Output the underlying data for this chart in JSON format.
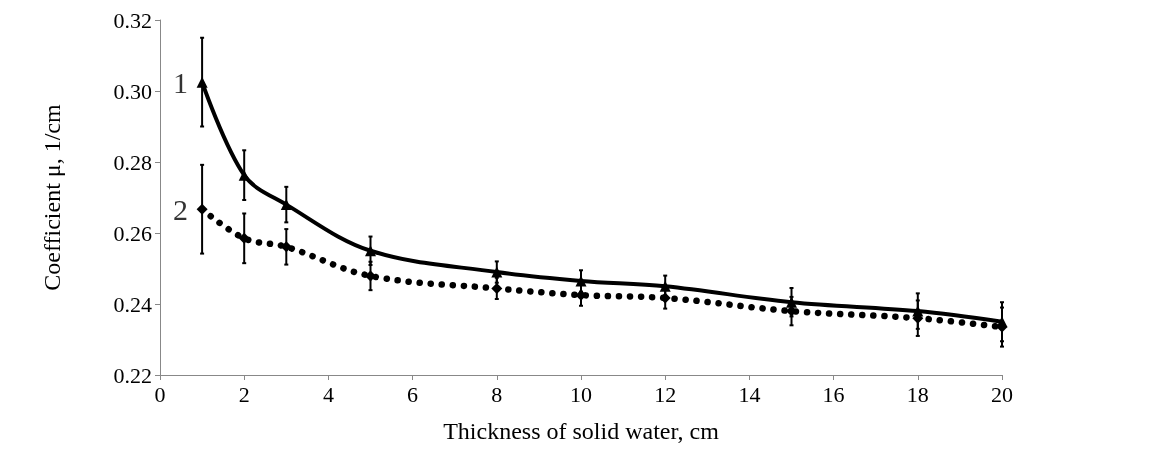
{
  "chart_data": {
    "type": "line",
    "xlabel": "Thickness of solid water, cm",
    "ylabel": "Coefficient μ, 1/cm",
    "x": [
      1,
      2,
      3,
      5,
      8,
      10,
      12,
      15,
      18,
      20
    ],
    "series": [
      {
        "color": "#000000",
        "marker": "triangle",
        "line_style": "solid",
        "values": [
          0.3025,
          0.2763,
          0.268,
          0.255,
          0.249,
          0.2465,
          0.245,
          0.2405,
          0.238,
          0.235
        ],
        "errors": [
          0.0125,
          0.007,
          0.005,
          0.004,
          0.003,
          0.003,
          0.003,
          0.004,
          0.005,
          0.0055
        ]
      },
      {
        "color": "#000000",
        "marker": "diamond",
        "line_style": "dotted",
        "values": [
          0.2667,
          0.2585,
          0.2561,
          0.2479,
          0.2444,
          0.2425,
          0.2417,
          0.238,
          0.236,
          0.2335
        ],
        "errors": [
          0.0125,
          0.007,
          0.005,
          0.004,
          0.003,
          0.003,
          0.003,
          0.004,
          0.005,
          0.0055
        ]
      }
    ],
    "annotations": [
      {
        "text": "1",
        "x": 1,
        "y": 0.3025
      },
      {
        "text": "2",
        "x": 1,
        "y": 0.2667
      }
    ],
    "xlim": [
      0,
      20
    ],
    "xticks": [
      0,
      2,
      4,
      6,
      8,
      10,
      12,
      14,
      16,
      18,
      20
    ],
    "ylim": [
      0.22,
      0.32
    ],
    "yticks": [
      {
        "value": 0.22,
        "label": "0.22"
      },
      {
        "value": 0.24,
        "label": "0.24"
      },
      {
        "value": 0.26,
        "label": "0.26"
      },
      {
        "value": 0.28,
        "label": "0.28"
      },
      {
        "value": 0.3,
        "label": "0.30"
      },
      {
        "value": 0.32,
        "label": "0.32"
      }
    ],
    "grid": false
  }
}
